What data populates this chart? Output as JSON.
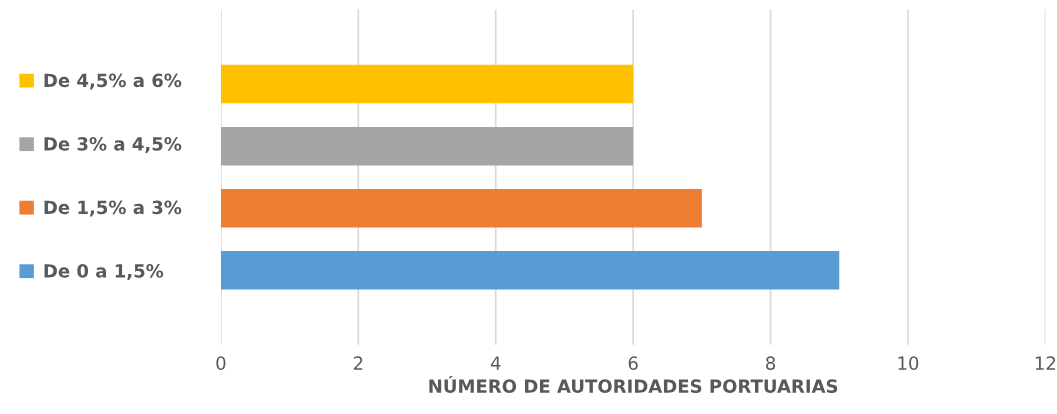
{
  "chart_data": {
    "type": "bar",
    "orientation": "horizontal",
    "xlabel": "NÚMERO DE AUTORIDADES PORTUARIAS",
    "categories": [
      null,
      null,
      null,
      null
    ],
    "series": [
      {
        "name": "De 4,5% a 6%",
        "color": "#ffc000",
        "values": [
          6,
          null,
          null,
          null
        ]
      },
      {
        "name": "De 3% a 4,5%",
        "color": "#a5a5a5",
        "values": [
          null,
          6,
          null,
          null
        ]
      },
      {
        "name": "De 1,5% a 3%",
        "color": "#ed7d31",
        "values": [
          null,
          null,
          7,
          null
        ]
      },
      {
        "name": "De 0 a 1,5%",
        "color": "#5b9bd5",
        "values": [
          null,
          null,
          null,
          9
        ]
      }
    ],
    "xlim": [
      0,
      12
    ],
    "xticks": [
      0,
      2,
      4,
      6,
      8,
      10,
      12
    ],
    "grid": "x",
    "legend": "left"
  }
}
